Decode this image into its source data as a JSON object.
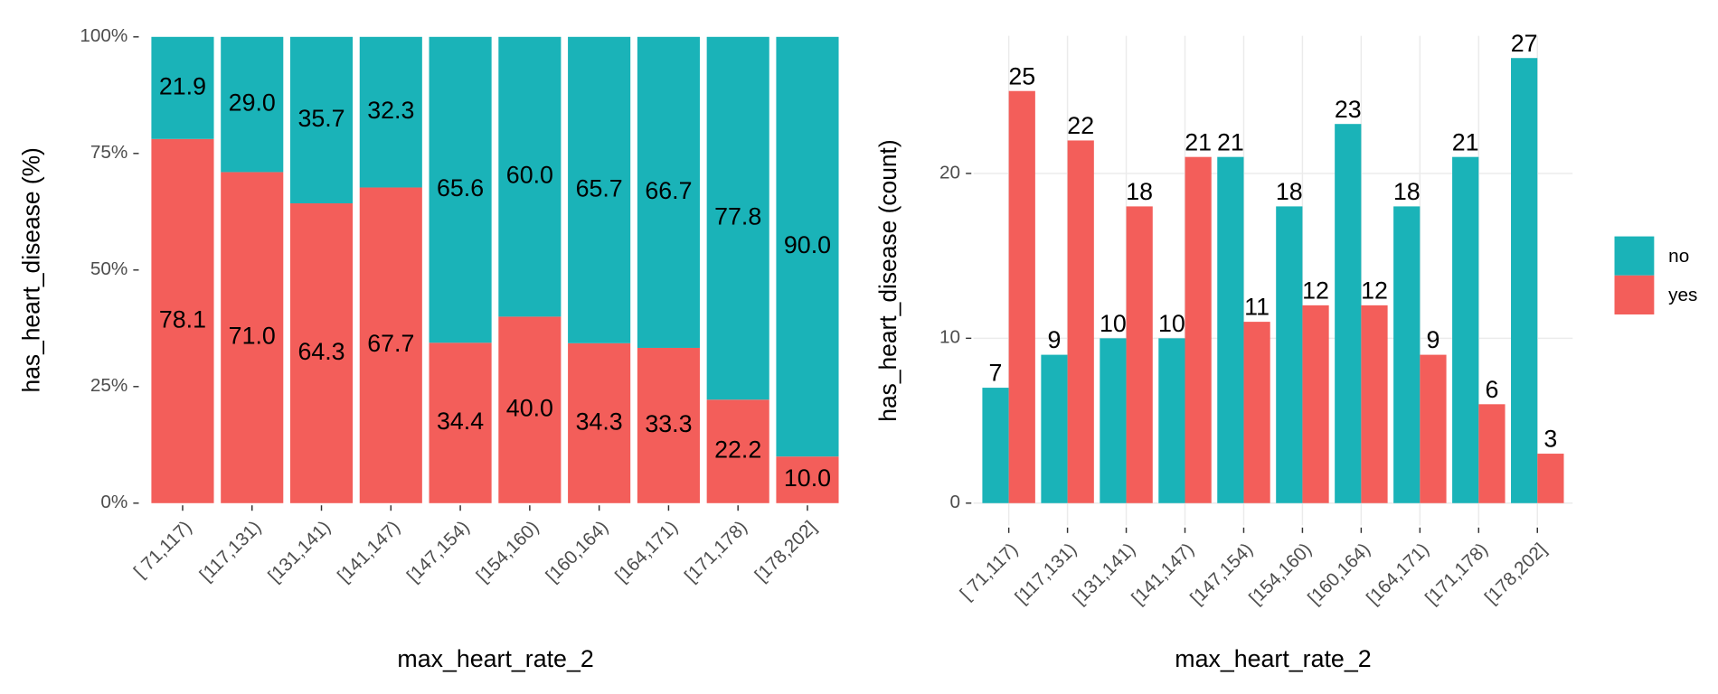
{
  "chart_data": [
    {
      "type": "bar",
      "stacked": true,
      "ylabel": "has_heart_disease  (%)",
      "xlabel": "max_heart_rate_2",
      "categories": [
        "[ 71,117)",
        "[117,131)",
        "[131,141)",
        "[141,147)",
        "[147,154)",
        "[154,160)",
        "[160,164)",
        "[164,171)",
        "[171,178)",
        "[178,202]"
      ],
      "series": [
        {
          "name": "yes",
          "color": "#F35E5A",
          "values": [
            78.1,
            71.0,
            64.3,
            67.7,
            34.4,
            40.0,
            34.3,
            33.3,
            22.2,
            10.0
          ],
          "value_labels": [
            "78.1",
            "71.0",
            "64.3",
            "67.7",
            "34.4",
            "40.0",
            "34.3",
            "33.3",
            "22.2",
            "10.0"
          ]
        },
        {
          "name": "no",
          "color": "#1AB3B8",
          "values": [
            21.9,
            29.0,
            35.7,
            32.3,
            65.6,
            60.0,
            65.7,
            66.7,
            77.8,
            90.0
          ],
          "value_labels": [
            "21.9",
            "29.0",
            "35.7",
            "32.3",
            "65.6",
            "60.0",
            "65.7",
            "66.7",
            "77.8",
            "90.0"
          ]
        }
      ],
      "ylim": [
        0,
        100
      ],
      "yticks": [
        {
          "value": 0,
          "label": "0%"
        },
        {
          "value": 25,
          "label": "25%"
        },
        {
          "value": 50,
          "label": "50%"
        },
        {
          "value": 75,
          "label": "75%"
        },
        {
          "value": 100,
          "label": "100%"
        }
      ],
      "grid": false
    },
    {
      "type": "bar",
      "stacked": false,
      "ylabel": "has_heart_disease  (count)",
      "xlabel": "max_heart_rate_2",
      "categories": [
        "[ 71,117)",
        "[117,131)",
        "[131,141)",
        "[141,147)",
        "[147,154)",
        "[154,160)",
        "[160,164)",
        "[164,171)",
        "[171,178)",
        "[178,202]"
      ],
      "series": [
        {
          "name": "no",
          "color": "#1AB3B8",
          "values": [
            7,
            9,
            10,
            10,
            21,
            18,
            23,
            18,
            21,
            27
          ]
        },
        {
          "name": "yes",
          "color": "#F35E5A",
          "values": [
            25,
            22,
            18,
            21,
            11,
            12,
            12,
            9,
            6,
            3
          ]
        }
      ],
      "ylim": [
        -1.35,
        28.35
      ],
      "yticks": [
        0,
        10,
        20
      ],
      "grid": true,
      "legend": "right"
    }
  ]
}
